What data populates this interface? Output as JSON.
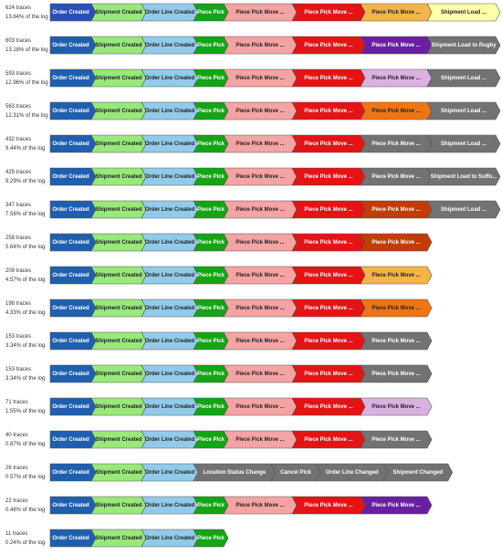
{
  "variants": [
    {
      "traces": "624 traces",
      "share": "13.64% of the log",
      "steps": [
        {
          "label": "Order Created",
          "color": "#2a4fb8"
        },
        {
          "label": "Shipment Created",
          "color": "#98e87a"
        },
        {
          "label": "Order Line Created",
          "color": "#92cbea"
        },
        {
          "label": "Piece Pick",
          "color": "#13a513"
        },
        {
          "label": "Piece Pick Move ...",
          "color": "#f5a3a3"
        },
        {
          "label": "Piece Pick Move ...",
          "color": "#e41414"
        },
        {
          "label": "Piece Pick Move ...",
          "color": "#f6b548"
        },
        {
          "label": "Shipment Load ...",
          "color": "#ffffa8"
        }
      ]
    },
    {
      "traces": "603 traces",
      "share": "13.18% of the log",
      "steps": [
        {
          "label": "Order Created",
          "color": "#1f5fb0"
        },
        {
          "label": "Shipment Created",
          "color": "#98e87a"
        },
        {
          "label": "Order Line Created",
          "color": "#92cbea"
        },
        {
          "label": "Piece Pick",
          "color": "#13a513"
        },
        {
          "label": "Piece Pick Move ...",
          "color": "#f5a3a3"
        },
        {
          "label": "Piece Pick Move ...",
          "color": "#e41414"
        },
        {
          "label": "Piece Pick Move ...",
          "color": "#6a1fa0"
        },
        {
          "label": "Shipment Load to Rugby",
          "color": "#727272"
        }
      ]
    },
    {
      "traces": "593 traces",
      "share": "12.96% of the log",
      "steps": [
        {
          "label": "Order Created",
          "color": "#1f5fb0"
        },
        {
          "label": "Shipment Created",
          "color": "#98e87a"
        },
        {
          "label": "Order Line Created",
          "color": "#92cbea"
        },
        {
          "label": "Piece Pick",
          "color": "#13a513"
        },
        {
          "label": "Piece Pick Move ...",
          "color": "#f5a3a3"
        },
        {
          "label": "Piece Pick Move ...",
          "color": "#e41414"
        },
        {
          "label": "Piece Pick Move ...",
          "color": "#d9b2e2"
        },
        {
          "label": "Shipment Load ...",
          "color": "#727272"
        }
      ]
    },
    {
      "traces": "563 traces",
      "share": "12.31% of the log",
      "steps": [
        {
          "label": "Order Created",
          "color": "#1f5fb0"
        },
        {
          "label": "Shipment Created",
          "color": "#98e87a"
        },
        {
          "label": "Order Line Created",
          "color": "#92cbea"
        },
        {
          "label": "Piece Pick",
          "color": "#13a513"
        },
        {
          "label": "Piece Pick Move ...",
          "color": "#f5a3a3"
        },
        {
          "label": "Piece Pick Move ...",
          "color": "#e41414"
        },
        {
          "label": "Piece Pick Move ...",
          "color": "#f07512"
        },
        {
          "label": "Shipment Load ...",
          "color": "#727272"
        }
      ]
    },
    {
      "traces": "432 traces",
      "share": "9.44% of the log",
      "steps": [
        {
          "label": "Order Created",
          "color": "#1f5fb0"
        },
        {
          "label": "Shipment Created",
          "color": "#98e87a"
        },
        {
          "label": "Order Line Created",
          "color": "#92cbea"
        },
        {
          "label": "Piece Pick",
          "color": "#13a513"
        },
        {
          "label": "Piece Pick Move ...",
          "color": "#f5a3a3"
        },
        {
          "label": "Piece Pick Move ...",
          "color": "#e41414"
        },
        {
          "label": "Piece Pick Move ...",
          "color": "#727272"
        },
        {
          "label": "Shipment Load ...",
          "color": "#727272"
        }
      ]
    },
    {
      "traces": "425 traces",
      "share": "9.29% of the log",
      "steps": [
        {
          "label": "Order Created",
          "color": "#1f5fb0"
        },
        {
          "label": "Shipment Created",
          "color": "#98e87a"
        },
        {
          "label": "Order Line Created",
          "color": "#92cbea"
        },
        {
          "label": "Piece Pick",
          "color": "#13a513"
        },
        {
          "label": "Piece Pick Move ...",
          "color": "#f5a3a3"
        },
        {
          "label": "Piece Pick Move ...",
          "color": "#e41414"
        },
        {
          "label": "Piece Pick Move ...",
          "color": "#727272"
        },
        {
          "label": "Shipment Load to Suffo...",
          "color": "#727272"
        }
      ]
    },
    {
      "traces": "347 traces",
      "share": "7.58% of the log",
      "steps": [
        {
          "label": "Order Created",
          "color": "#1f5fb0"
        },
        {
          "label": "Shipment Created",
          "color": "#98e87a"
        },
        {
          "label": "Order Line Created",
          "color": "#92cbea"
        },
        {
          "label": "Piece Pick",
          "color": "#13a513"
        },
        {
          "label": "Piece Pick Move ...",
          "color": "#f5a3a3"
        },
        {
          "label": "Piece Pick Move ...",
          "color": "#e41414"
        },
        {
          "label": "Piece Pick Move ...",
          "color": "#c23c05"
        },
        {
          "label": "Shipment Load ...",
          "color": "#727272"
        }
      ]
    },
    {
      "traces": "258 traces",
      "share": "5.64% of the log",
      "steps": [
        {
          "label": "Order Created",
          "color": "#1f5fb0"
        },
        {
          "label": "Shipment Created",
          "color": "#98e87a"
        },
        {
          "label": "Order Line Created",
          "color": "#92cbea"
        },
        {
          "label": "Piece Pick",
          "color": "#13a513"
        },
        {
          "label": "Piece Pick Move ...",
          "color": "#f5a3a3"
        },
        {
          "label": "Piece Pick Move ...",
          "color": "#e41414"
        },
        {
          "label": "Piece Pick Move ...",
          "color": "#c23c05"
        }
      ]
    },
    {
      "traces": "209 traces",
      "share": "4.57% of the log",
      "steps": [
        {
          "label": "Order Created",
          "color": "#1f5fb0"
        },
        {
          "label": "Shipment Created",
          "color": "#98e87a"
        },
        {
          "label": "Order Line Created",
          "color": "#92cbea"
        },
        {
          "label": "Piece Pick",
          "color": "#13a513"
        },
        {
          "label": "Piece Pick Move ...",
          "color": "#f5a3a3"
        },
        {
          "label": "Piece Pick Move ...",
          "color": "#e41414"
        },
        {
          "label": "Piece Pick Move ...",
          "color": "#f6b548"
        }
      ]
    },
    {
      "traces": "198 traces",
      "share": "4.33% of the log",
      "steps": [
        {
          "label": "Order Created",
          "color": "#1f5fb0"
        },
        {
          "label": "Shipment Created",
          "color": "#98e87a"
        },
        {
          "label": "Order Line Created",
          "color": "#92cbea"
        },
        {
          "label": "Piece Pick",
          "color": "#13a513"
        },
        {
          "label": "Piece Pick Move ...",
          "color": "#f5a3a3"
        },
        {
          "label": "Piece Pick Move ...",
          "color": "#e41414"
        },
        {
          "label": "Piece Pick Move ...",
          "color": "#f07512"
        }
      ]
    },
    {
      "traces": "153 traces",
      "share": "3.34% of the log",
      "steps": [
        {
          "label": "Order Created",
          "color": "#1f5fb0"
        },
        {
          "label": "Shipment Created",
          "color": "#98e87a"
        },
        {
          "label": "Order Line Created",
          "color": "#92cbea"
        },
        {
          "label": "Piece Pick",
          "color": "#13a513"
        },
        {
          "label": "Piece Pick Move ...",
          "color": "#f5a3a3"
        },
        {
          "label": "Piece Pick Move ...",
          "color": "#e41414"
        },
        {
          "label": "Piece Pick Move ...",
          "color": "#727272"
        }
      ]
    },
    {
      "traces": "153 traces",
      "share": "3.34% of the log",
      "steps": [
        {
          "label": "Order Created",
          "color": "#1f5fb0"
        },
        {
          "label": "Shipment Created",
          "color": "#98e87a"
        },
        {
          "label": "Order Line Created",
          "color": "#92cbea"
        },
        {
          "label": "Piece Pick",
          "color": "#13a513"
        },
        {
          "label": "Piece Pick Move ...",
          "color": "#f5a3a3"
        },
        {
          "label": "Piece Pick Move ...",
          "color": "#e41414"
        },
        {
          "label": "Piece Pick Move ...",
          "color": "#727272"
        }
      ]
    },
    {
      "traces": "71 traces",
      "share": "1.55% of the log",
      "steps": [
        {
          "label": "Order Created",
          "color": "#1f5fb0"
        },
        {
          "label": "Shipment Created",
          "color": "#98e87a"
        },
        {
          "label": "Order Line Created",
          "color": "#92cbea"
        },
        {
          "label": "Piece Pick",
          "color": "#13a513"
        },
        {
          "label": "Piece Pick Move ...",
          "color": "#f5a3a3"
        },
        {
          "label": "Piece Pick Move ...",
          "color": "#e41414"
        },
        {
          "label": "Piece Pick Move ...",
          "color": "#d9b2e2"
        }
      ]
    },
    {
      "traces": "40 traces",
      "share": "0.87% of the log",
      "steps": [
        {
          "label": "Order Created",
          "color": "#1f5fb0"
        },
        {
          "label": "Shipment Created",
          "color": "#98e87a"
        },
        {
          "label": "Order Line Created",
          "color": "#92cbea"
        },
        {
          "label": "Piece Pick",
          "color": "#13a513"
        },
        {
          "label": "Piece Pick Move ...",
          "color": "#f5a3a3"
        },
        {
          "label": "Piece Pick Move ...",
          "color": "#e41414"
        },
        {
          "label": "Piece Pick Move ...",
          "color": "#727272"
        }
      ]
    },
    {
      "traces": "26 traces",
      "share": "0.57% of the log",
      "steps": [
        {
          "label": "Order Created",
          "color": "#1f5fb0"
        },
        {
          "label": "Shipment Created",
          "color": "#98e87a"
        },
        {
          "label": "Order Line Created",
          "color": "#92cbea"
        },
        {
          "label": "Location Status Change",
          "color": "#727272"
        },
        {
          "label": "Cancel Pick",
          "color": "#727272"
        },
        {
          "label": "Order Line Changed",
          "color": "#727272"
        },
        {
          "label": "Shipment Changed",
          "color": "#727272"
        }
      ]
    },
    {
      "traces": "22 traces",
      "share": "0.48% of the log",
      "steps": [
        {
          "label": "Order Created",
          "color": "#1f5fb0"
        },
        {
          "label": "Shipment Created",
          "color": "#98e87a"
        },
        {
          "label": "Order Line Created",
          "color": "#92cbea"
        },
        {
          "label": "Piece Pick",
          "color": "#13a513"
        },
        {
          "label": "Piece Pick Move ...",
          "color": "#f5a3a3"
        },
        {
          "label": "Piece Pick Move ...",
          "color": "#e41414"
        },
        {
          "label": "Piece Pick Move ...",
          "color": "#6a1fa0"
        }
      ]
    },
    {
      "traces": "11 traces",
      "share": "0.24% of the log",
      "steps": [
        {
          "label": "Order Created",
          "color": "#1f5fb0"
        },
        {
          "label": "Shipment Created",
          "color": "#98e87a"
        },
        {
          "label": "Order Line Created",
          "color": "#92cbea"
        },
        {
          "label": "Piece Pick",
          "color": "#13a513"
        }
      ]
    }
  ]
}
